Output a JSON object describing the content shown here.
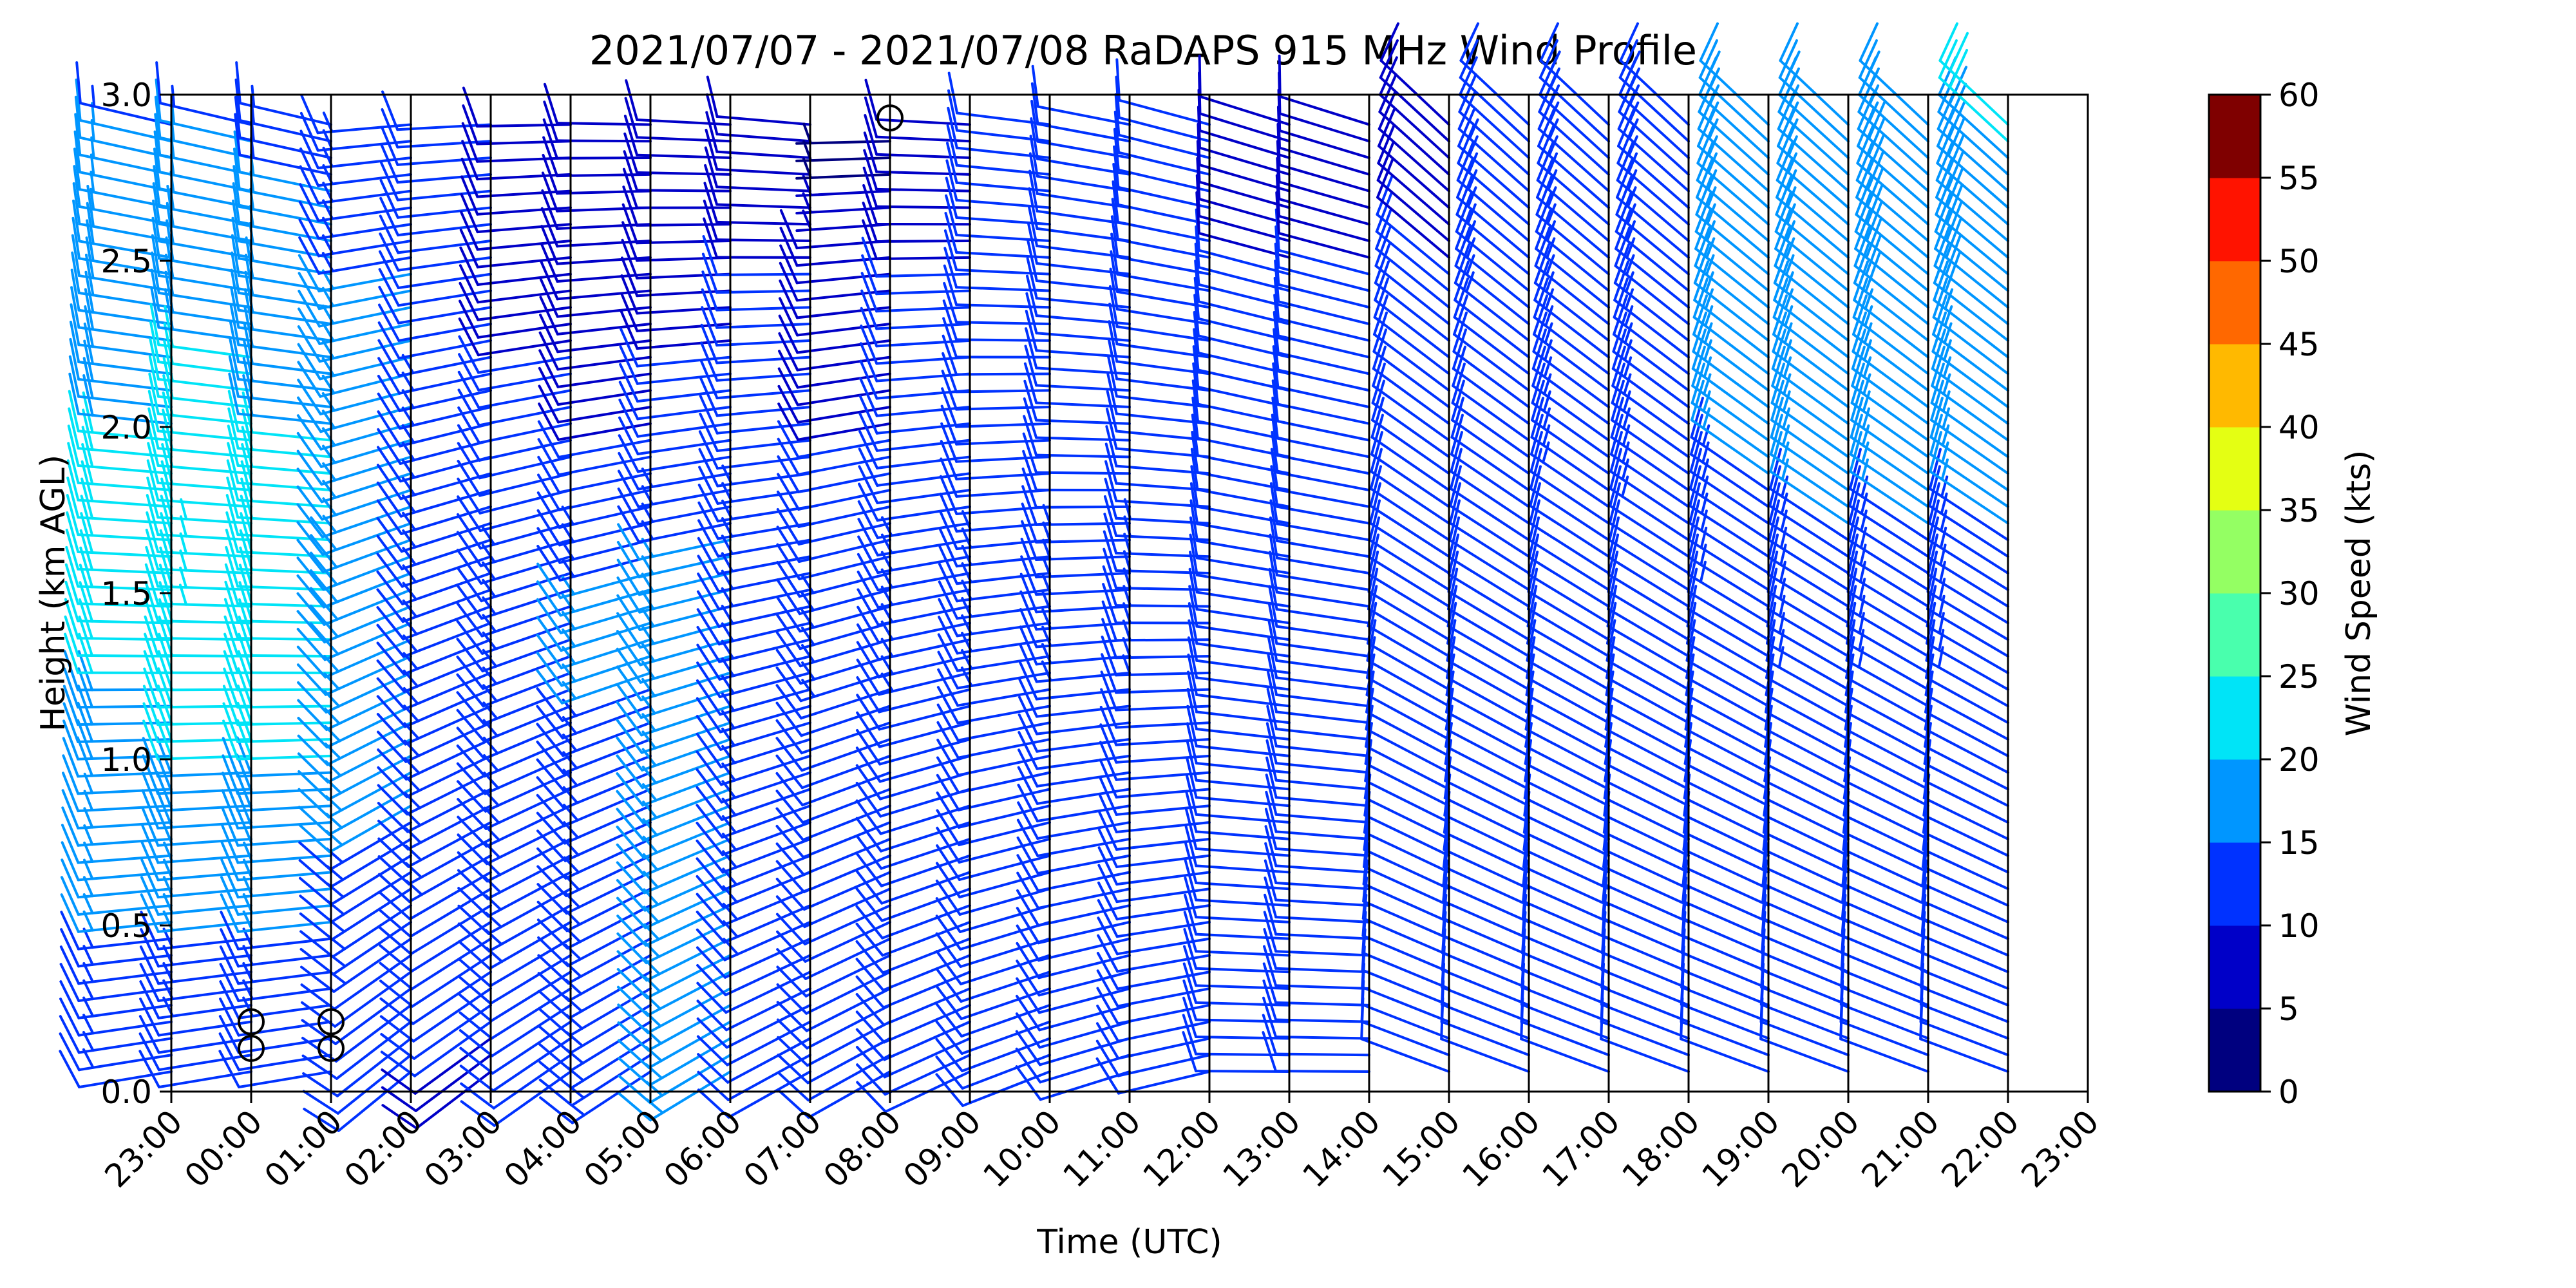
{
  "chart_data": {
    "type": "wind-barb-profile",
    "title": "2021/07/07 - 2021/07/08 RaDAPS 915 MHz Wind Profile",
    "xlabel": "Time (UTC)",
    "ylabel": "Height (km AGL)",
    "ylim": [
      0,
      3.0
    ],
    "y_ticks": [
      "0.0",
      "0.5",
      "1.0",
      "1.5",
      "2.0",
      "2.5",
      "3.0"
    ],
    "x_ticks": [
      "23:00",
      "00:00",
      "01:00",
      "02:00",
      "03:00",
      "04:00",
      "05:00",
      "06:00",
      "07:00",
      "08:00",
      "09:00",
      "10:00",
      "11:00",
      "12:00",
      "13:00",
      "14:00",
      "15:00",
      "16:00",
      "17:00",
      "18:00",
      "19:00",
      "20:00",
      "21:00",
      "22:00",
      "23:00"
    ],
    "colorbar": {
      "label": "Wind Speed (kts)",
      "range": [
        0,
        60
      ],
      "ticks": [
        "0",
        "5",
        "10",
        "15",
        "20",
        "25",
        "30",
        "35",
        "40",
        "45",
        "50",
        "55",
        "60"
      ],
      "colors": [
        "#00007f",
        "#0000c8",
        "#0032ff",
        "#0096ff",
        "#00e4f7",
        "#49ffad",
        "#94ff63",
        "#e4ff13",
        "#ffb900",
        "#ff6800",
        "#ff1300",
        "#7f0000"
      ]
    },
    "grid": "vertical lines at each hourly profile",
    "profiles": [
      {
        "time": "23:00",
        "speeds": [
          [
            0.0,
            12
          ],
          [
            1.0,
            18
          ],
          [
            1.5,
            22
          ],
          [
            2.0,
            20
          ],
          [
            2.5,
            18
          ],
          [
            3.0,
            14
          ]
        ],
        "direction": "northwest-to-west"
      },
      {
        "time": "00:00",
        "speeds": [
          [
            0.0,
            10
          ],
          [
            1.0,
            20
          ],
          [
            1.5,
            23
          ],
          [
            2.0,
            22
          ],
          [
            2.5,
            18
          ],
          [
            3.0,
            14
          ]
        ],
        "direction": "west"
      },
      {
        "time": "01:00",
        "speeds": [
          [
            0.0,
            10
          ],
          [
            1.0,
            20
          ],
          [
            1.5,
            22
          ],
          [
            2.0,
            20
          ],
          [
            2.5,
            17
          ],
          [
            3.0,
            13
          ]
        ],
        "direction": "west"
      },
      {
        "time": "02:00",
        "speeds": [
          [
            0.0,
            10
          ],
          [
            1.0,
            16
          ],
          [
            1.5,
            18
          ],
          [
            2.0,
            17
          ],
          [
            2.5,
            15
          ],
          [
            3.0,
            12
          ]
        ],
        "direction": "west-southwest"
      },
      {
        "time": "03:00",
        "speeds": [
          [
            0.0,
            9
          ],
          [
            1.0,
            14
          ],
          [
            1.5,
            15
          ],
          [
            2.0,
            13
          ],
          [
            2.5,
            12
          ],
          [
            3.0,
            10
          ]
        ],
        "direction": "southwest"
      },
      {
        "time": "04:00",
        "speeds": [
          [
            0.0,
            12
          ],
          [
            1.0,
            13
          ],
          [
            1.5,
            14
          ],
          [
            2.0,
            11
          ],
          [
            2.5,
            9
          ],
          [
            3.0,
            8
          ]
        ],
        "direction": "southwest"
      },
      {
        "time": "05:00",
        "speeds": [
          [
            0.0,
            14
          ],
          [
            1.0,
            14
          ],
          [
            1.5,
            16
          ],
          [
            2.0,
            10
          ],
          [
            2.5,
            8
          ],
          [
            3.0,
            8
          ]
        ],
        "direction": "southwest"
      },
      {
        "time": "06:00",
        "speeds": [
          [
            0.0,
            15
          ],
          [
            1.0,
            16
          ],
          [
            1.5,
            17
          ],
          [
            2.0,
            11
          ],
          [
            2.5,
            9
          ],
          [
            3.0,
            8
          ]
        ],
        "direction": "southwest"
      },
      {
        "time": "07:00",
        "speeds": [
          [
            0.0,
            12
          ],
          [
            1.0,
            13
          ],
          [
            1.5,
            14
          ],
          [
            2.0,
            12
          ],
          [
            2.5,
            10
          ],
          [
            3.0,
            9
          ]
        ],
        "direction": "southwest"
      },
      {
        "time": "08:00",
        "speeds": [
          [
            0.0,
            10
          ],
          [
            1.0,
            12
          ],
          [
            1.5,
            13
          ],
          [
            2.0,
            10
          ],
          [
            2.5,
            9
          ],
          [
            3.0,
            0
          ]
        ],
        "direction": "southwest"
      },
      {
        "time": "09:00",
        "speeds": [
          [
            0.0,
            11
          ],
          [
            1.0,
            12
          ],
          [
            1.5,
            13
          ],
          [
            2.0,
            12
          ],
          [
            2.5,
            10
          ],
          [
            3.0,
            9
          ]
        ],
        "direction": "southwest"
      },
      {
        "time": "10:00",
        "speeds": [
          [
            0.0,
            12
          ],
          [
            1.0,
            12
          ],
          [
            1.5,
            13
          ],
          [
            2.0,
            12
          ],
          [
            2.5,
            11
          ],
          [
            3.0,
            10
          ]
        ],
        "direction": "southwest-to-west"
      },
      {
        "time": "11:00",
        "speeds": [
          [
            0.0,
            12
          ],
          [
            1.0,
            12
          ],
          [
            1.5,
            13
          ],
          [
            2.0,
            12
          ],
          [
            2.5,
            11
          ],
          [
            3.0,
            10
          ]
        ],
        "direction": "southwest-to-west"
      },
      {
        "time": "12:00",
        "speeds": [
          [
            0.0,
            12
          ],
          [
            1.0,
            12
          ],
          [
            1.5,
            13
          ],
          [
            2.0,
            12
          ],
          [
            2.5,
            11
          ],
          [
            3.0,
            10
          ]
        ],
        "direction": "west"
      },
      {
        "time": "13:00",
        "speeds": [
          [
            0.0,
            11
          ],
          [
            1.0,
            11
          ],
          [
            1.5,
            12
          ],
          [
            2.0,
            11
          ],
          [
            2.5,
            10
          ],
          [
            3.0,
            9
          ]
        ],
        "direction": "west"
      },
      {
        "time": "14:00",
        "speeds": [
          [
            0.0,
            10
          ],
          [
            1.0,
            10
          ],
          [
            1.5,
            11
          ],
          [
            2.0,
            11
          ],
          [
            2.5,
            10
          ],
          [
            3.0,
            9
          ]
        ],
        "direction": "west-northwest"
      },
      {
        "time": "15:00",
        "speeds": [
          [
            0.0,
            10
          ],
          [
            1.0,
            10
          ],
          [
            1.5,
            11
          ],
          [
            2.0,
            11
          ],
          [
            2.5,
            10
          ],
          [
            3.0,
            9
          ]
        ],
        "direction": "west-northwest"
      },
      {
        "time": "16:00",
        "speeds": [
          [
            0.0,
            10
          ],
          [
            1.0,
            11
          ],
          [
            1.5,
            11
          ],
          [
            2.0,
            12
          ],
          [
            2.5,
            13
          ],
          [
            3.0,
            12
          ]
        ],
        "direction": "northwest"
      },
      {
        "time": "17:00",
        "speeds": [
          [
            0.0,
            10
          ],
          [
            1.0,
            11
          ],
          [
            1.5,
            12
          ],
          [
            2.0,
            13
          ],
          [
            2.5,
            14
          ],
          [
            3.0,
            13
          ]
        ],
        "direction": "northwest"
      },
      {
        "time": "18:00",
        "speeds": [
          [
            0.0,
            10
          ],
          [
            1.0,
            11
          ],
          [
            1.5,
            12
          ],
          [
            2.0,
            14
          ],
          [
            2.5,
            15
          ],
          [
            3.0,
            14
          ]
        ],
        "direction": "northwest"
      },
      {
        "time": "19:00",
        "speeds": [
          [
            0.0,
            10
          ],
          [
            1.0,
            11
          ],
          [
            1.5,
            13
          ],
          [
            2.0,
            16
          ],
          [
            2.5,
            16
          ],
          [
            3.0,
            15
          ]
        ],
        "direction": "northwest"
      },
      {
        "time": "20:00",
        "speeds": [
          [
            0.0,
            10
          ],
          [
            1.0,
            12
          ],
          [
            1.5,
            14
          ],
          [
            2.0,
            17
          ],
          [
            2.5,
            17
          ],
          [
            3.0,
            16
          ]
        ],
        "direction": "northwest"
      },
      {
        "time": "21:00",
        "speeds": [
          [
            0.0,
            10
          ],
          [
            1.0,
            12
          ],
          [
            1.5,
            14
          ],
          [
            2.0,
            17
          ],
          [
            2.5,
            18
          ],
          [
            3.0,
            17
          ]
        ],
        "direction": "northwest"
      },
      {
        "time": "22:00",
        "speeds": [
          [
            0.0,
            10
          ],
          [
            1.0,
            12
          ],
          [
            1.5,
            14
          ],
          [
            2.0,
            17
          ],
          [
            2.5,
            18
          ],
          [
            3.0,
            21
          ]
        ],
        "direction": "northwest"
      }
    ],
    "calm_markers": [
      {
        "time": "00:00",
        "heights": [
          0.13,
          0.21
        ]
      },
      {
        "time": "01:00",
        "heights": [
          0.13,
          0.21
        ]
      },
      {
        "time": "08:00",
        "heights": [
          2.93
        ]
      }
    ]
  }
}
